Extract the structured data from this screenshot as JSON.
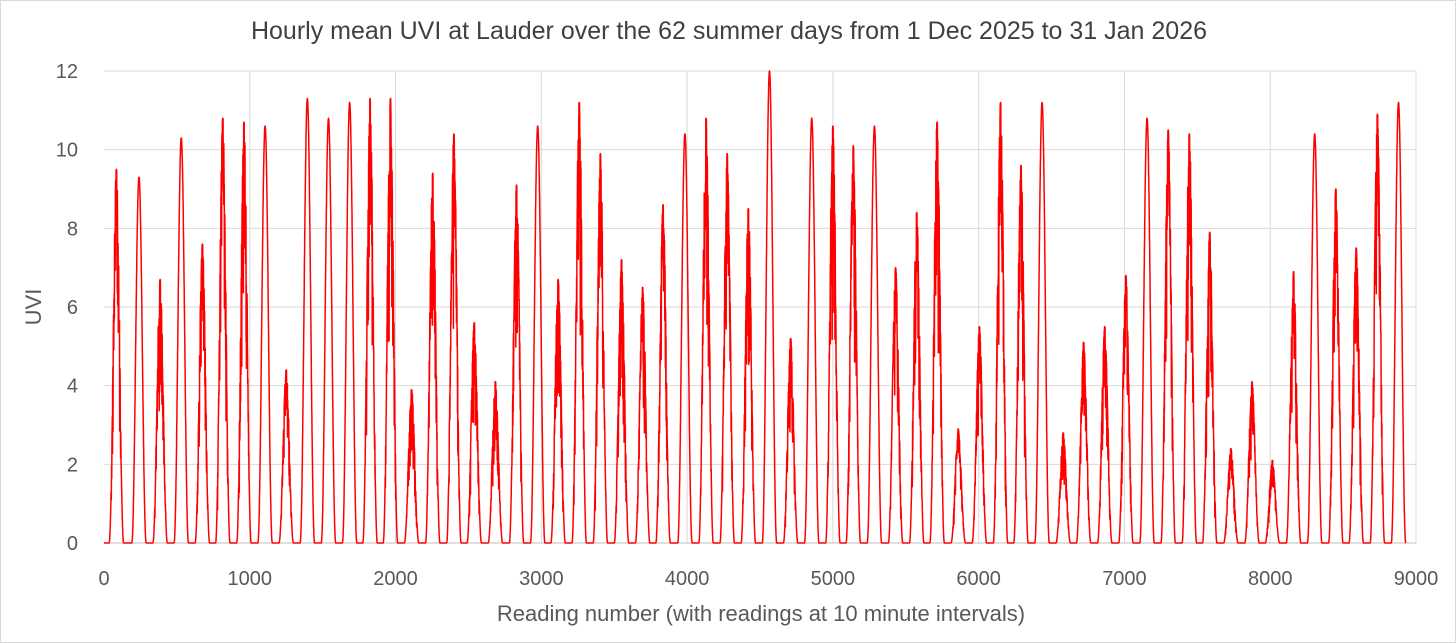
{
  "chart_data": {
    "type": "line",
    "title": "Hourly mean UVI at Lauder over the 62 summer  days from 1 Dec 2025 to 31 Jan 2026",
    "xlabel": "Reading number (with readings at 10 minute intervals)",
    "ylabel": "UVI",
    "xlim": [
      0,
      9000
    ],
    "ylim": [
      0,
      12
    ],
    "xticks": [
      0,
      1000,
      2000,
      3000,
      4000,
      5000,
      6000,
      7000,
      8000,
      9000
    ],
    "yticks": [
      0,
      2,
      4,
      6,
      8,
      10,
      12
    ],
    "x_tick_labels": [
      "0",
      "1000",
      "2000",
      "3000",
      "4000",
      "5000",
      "6000",
      "7000",
      "8000",
      "9000"
    ],
    "y_tick_labels": [
      "0",
      "2",
      "4",
      "6",
      "8",
      "10",
      "12"
    ],
    "grid": true,
    "legend": "none",
    "series_color": "#ff0000",
    "series": [
      {
        "daily_peak_reading": [
          85,
          240,
          385,
          530,
          675,
          815,
          960,
          1105,
          1250,
          1395,
          1540,
          1685,
          1825,
          1965,
          2110,
          2255,
          2400,
          2540,
          2685,
          2830,
          2975,
          3115,
          3260,
          3405,
          3550,
          3695,
          3835,
          3985,
          4130,
          4275,
          4420,
          4565,
          4710,
          4855,
          5000,
          5140,
          5285,
          5430,
          5575,
          5715,
          5860,
          6005,
          6150,
          6290,
          6435,
          6580,
          6720,
          6865,
          7010,
          7155,
          7300,
          7445,
          7585,
          7730,
          7875,
          8015,
          8160,
          8305,
          8450,
          8590,
          8735,
          8880
        ],
        "daily_peak_uvi": [
          9.5,
          9.3,
          6.7,
          10.3,
          7.6,
          10.8,
          10.7,
          10.6,
          4.4,
          11.3,
          10.8,
          11.2,
          11.3,
          11.3,
          3.9,
          9.4,
          10.4,
          5.6,
          4.1,
          9.1,
          10.6,
          6.7,
          11.2,
          9.9,
          7.2,
          6.5,
          8.6,
          10.4,
          10.8,
          9.9,
          8.5,
          12.0,
          5.2,
          10.8,
          10.6,
          10.1,
          10.6,
          7.0,
          8.4,
          10.7,
          2.9,
          5.5,
          11.2,
          9.6,
          11.2,
          2.8,
          5.1,
          5.5,
          6.8,
          10.8,
          10.5,
          10.4,
          7.9,
          2.4,
          4.1,
          2.1,
          6.9,
          10.4,
          9.0,
          7.5,
          10.9,
          11.2
        ],
        "daily_ragged": [
          1,
          0,
          1,
          0,
          1,
          1,
          1,
          0,
          1,
          0,
          0,
          0,
          1,
          1,
          1,
          1,
          1,
          1,
          1,
          1,
          0,
          1,
          1,
          1,
          1,
          1,
          1,
          0,
          1,
          1,
          1,
          0,
          1,
          0,
          1,
          1,
          0,
          1,
          1,
          1,
          1,
          1,
          1,
          1,
          0,
          1,
          1,
          1,
          1,
          0,
          1,
          1,
          1,
          1,
          1,
          1,
          1,
          0,
          1,
          1,
          1,
          0
        ]
      }
    ]
  }
}
